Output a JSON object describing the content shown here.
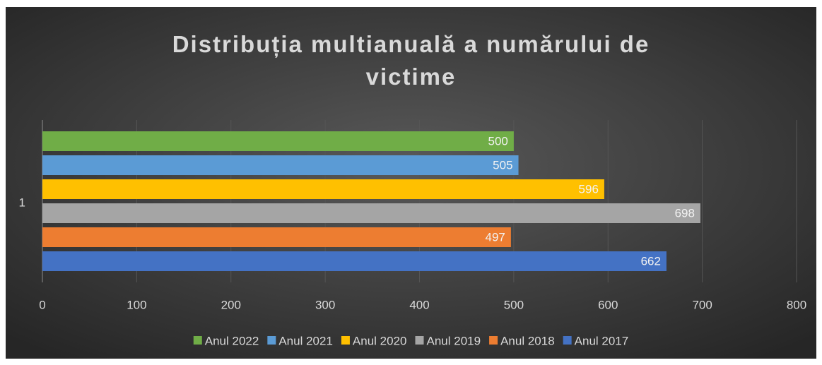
{
  "chart_data": {
    "type": "bar",
    "orientation": "horizontal",
    "title": "Distribuția multianuală a numărului de victime",
    "categories": [
      "1"
    ],
    "series": [
      {
        "name": "Anul 2022",
        "color": "#70ad47",
        "values": [
          500
        ]
      },
      {
        "name": "Anul 2021",
        "color": "#5b9bd5",
        "values": [
          505
        ]
      },
      {
        "name": "Anul 2020",
        "color": "#ffc000",
        "values": [
          596
        ]
      },
      {
        "name": "Anul 2019",
        "color": "#a5a5a5",
        "values": [
          698
        ]
      },
      {
        "name": "Anul 2018",
        "color": "#ed7d31",
        "values": [
          497
        ]
      },
      {
        "name": "Anul 2017",
        "color": "#4472c4",
        "values": [
          662
        ]
      }
    ],
    "xlim": [
      0,
      800
    ],
    "xticks": [
      0,
      100,
      200,
      300,
      400,
      500,
      600,
      700,
      800
    ],
    "grid": true,
    "legend": "bottom"
  }
}
